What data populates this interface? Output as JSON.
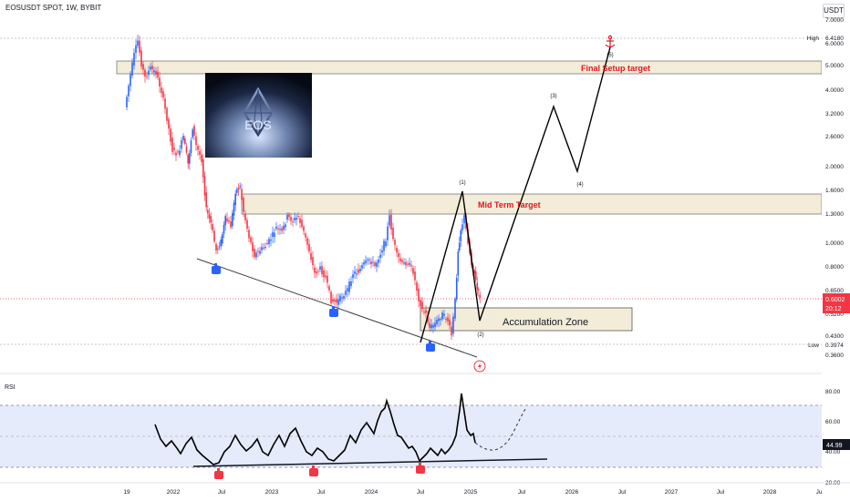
{
  "header": {
    "title": "EOSUSDT SPOT, 1W, BYBIT",
    "currency": "USDT"
  },
  "chart_data": [
    {
      "type": "candlestick",
      "symbol": "EOSUSDT",
      "interval": "1W",
      "exchange": "BYBIT",
      "y_scale": "log",
      "y_ticks": [
        "7.0000",
        "6.0000",
        "5.0000",
        "4.0000",
        "3.2000",
        "2.6000",
        "2.0000",
        "1.6000",
        "1.3000",
        "1.0000",
        "0.8000",
        "0.6500",
        "0.5200",
        "0.4300",
        "0.3600"
      ],
      "x_ticks": [
        "19",
        "2022",
        "Jul",
        "2023",
        "Jul",
        "2024",
        "Jul",
        "2025",
        "Jul",
        "2026",
        "Jul",
        "2027",
        "Jul",
        "2028",
        "Ju"
      ],
      "high": {
        "label": "High",
        "value": "6.4180"
      },
      "low": {
        "label": "Low",
        "value": "0.3974"
      },
      "last_price": "0.6002",
      "countdown": "20:12",
      "annotations": {
        "final_target": "Final Setup target",
        "mid_target": "Mid Term Target",
        "accumulation": "Accumulation Zone",
        "waves": [
          "(1)",
          "(2)",
          "(3)",
          "(4)",
          "(5)"
        ]
      },
      "image_caption": "EOS",
      "grid": true
    },
    {
      "type": "line",
      "title": "RSI",
      "y_ticks": [
        "80.00",
        "60.00",
        "40.00",
        "20.00"
      ],
      "band": [
        30,
        70
      ],
      "last_value": "44.99"
    }
  ]
}
